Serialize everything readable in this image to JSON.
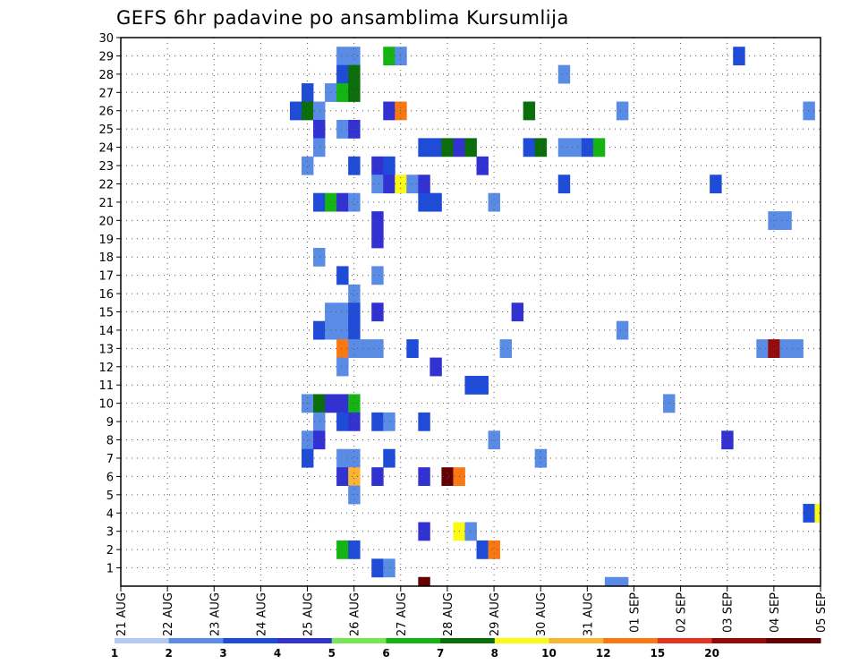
{
  "chart_data": {
    "type": "heatmap",
    "title": "GEFS 6hr padavine po ansamblima Kursumlija",
    "x_tick_labels": [
      "21 AUG",
      "22 AUG",
      "23 AUG",
      "24 AUG",
      "25 AUG",
      "26 AUG",
      "27 AUG",
      "28 AUG",
      "29 AUG",
      "30 AUG",
      "31 AUG",
      "01 SEP",
      "02 SEP",
      "03 SEP",
      "04 SEP",
      "05 SEP"
    ],
    "x_range_days": [
      0,
      15
    ],
    "y_ticks": [
      1,
      2,
      3,
      4,
      5,
      6,
      7,
      8,
      9,
      10,
      11,
      12,
      13,
      14,
      15,
      16,
      17,
      18,
      19,
      20,
      21,
      22,
      23,
      24,
      25,
      26,
      27,
      28,
      29,
      30
    ],
    "y_range": [
      0,
      30
    ],
    "grid": "dotted",
    "legend_placement": "bottom",
    "colorbar": {
      "thresholds": [
        "1",
        "2",
        "3",
        "4",
        "5",
        "6",
        "7",
        "8",
        "10",
        "12",
        "15",
        "20"
      ],
      "colors": [
        "#B4C8F5",
        "#5A8CE6",
        "#1E4BD7",
        "#3232D2",
        "#78E650",
        "#14B414",
        "#0A6E0A",
        "#FAFA14",
        "#FAB432",
        "#FA7814",
        "#E6321E",
        "#960A0A",
        "#640000"
      ]
    },
    "cells": [
      [
        4.75,
        29,
        1
      ],
      [
        5.0,
        29,
        1
      ],
      [
        5.75,
        29,
        5
      ],
      [
        6.0,
        29,
        1
      ],
      [
        13.25,
        29,
        2
      ],
      [
        4.75,
        28,
        2
      ],
      [
        5.0,
        28,
        6
      ],
      [
        9.5,
        28,
        1
      ],
      [
        4.0,
        27,
        2
      ],
      [
        4.5,
        27,
        1
      ],
      [
        4.75,
        27,
        5
      ],
      [
        5.0,
        27,
        6
      ],
      [
        3.75,
        26,
        2
      ],
      [
        4.0,
        26,
        6
      ],
      [
        4.25,
        26,
        1
      ],
      [
        5.75,
        26,
        3
      ],
      [
        6.0,
        26,
        9
      ],
      [
        8.75,
        26,
        6
      ],
      [
        10.75,
        26,
        1
      ],
      [
        14.75,
        26,
        1
      ],
      [
        4.25,
        25,
        3
      ],
      [
        4.75,
        25,
        1
      ],
      [
        5.0,
        25,
        3
      ],
      [
        4.25,
        24,
        1
      ],
      [
        6.5,
        24,
        2
      ],
      [
        6.75,
        24,
        2
      ],
      [
        7.0,
        24,
        6
      ],
      [
        7.25,
        24,
        3
      ],
      [
        7.5,
        24,
        6
      ],
      [
        8.75,
        24,
        2
      ],
      [
        9.0,
        24,
        6
      ],
      [
        9.5,
        24,
        1
      ],
      [
        9.75,
        24,
        1
      ],
      [
        10.0,
        24,
        2
      ],
      [
        10.25,
        24,
        5
      ],
      [
        4.0,
        23,
        1
      ],
      [
        5.0,
        23,
        2
      ],
      [
        5.5,
        23,
        3
      ],
      [
        5.75,
        23,
        2
      ],
      [
        7.75,
        23,
        3
      ],
      [
        5.5,
        22,
        1
      ],
      [
        5.75,
        22,
        3
      ],
      [
        6.0,
        22,
        7
      ],
      [
        6.25,
        22,
        1
      ],
      [
        6.5,
        22,
        3
      ],
      [
        9.5,
        22,
        2
      ],
      [
        12.75,
        22,
        2
      ],
      [
        4.25,
        21,
        2
      ],
      [
        4.5,
        21,
        5
      ],
      [
        4.75,
        21,
        3
      ],
      [
        5.0,
        21,
        1
      ],
      [
        6.5,
        21,
        2
      ],
      [
        6.75,
        21,
        2
      ],
      [
        8.0,
        21,
        1
      ],
      [
        5.5,
        20,
        3
      ],
      [
        14.0,
        20,
        1
      ],
      [
        14.25,
        20,
        1
      ],
      [
        5.5,
        19,
        3
      ],
      [
        4.25,
        18,
        1
      ],
      [
        4.75,
        17,
        2
      ],
      [
        5.5,
        17,
        1
      ],
      [
        5.0,
        16,
        1
      ],
      [
        4.5,
        15,
        1
      ],
      [
        4.75,
        15,
        1
      ],
      [
        5.0,
        15,
        2
      ],
      [
        5.5,
        15,
        3
      ],
      [
        8.5,
        15,
        3
      ],
      [
        4.25,
        14,
        2
      ],
      [
        4.5,
        14,
        1
      ],
      [
        4.75,
        14,
        1
      ],
      [
        5.0,
        14,
        2
      ],
      [
        10.75,
        14,
        1
      ],
      [
        4.75,
        13,
        9
      ],
      [
        5.0,
        13,
        1
      ],
      [
        5.25,
        13,
        1
      ],
      [
        5.5,
        13,
        1
      ],
      [
        6.25,
        13,
        2
      ],
      [
        8.25,
        13,
        1
      ],
      [
        13.75,
        13,
        1
      ],
      [
        14.0,
        13,
        11
      ],
      [
        14.25,
        13,
        1
      ],
      [
        14.5,
        13,
        1
      ],
      [
        4.75,
        12,
        1
      ],
      [
        6.75,
        12,
        3
      ],
      [
        7.5,
        11,
        2
      ],
      [
        7.75,
        11,
        2
      ],
      [
        4.0,
        10,
        1
      ],
      [
        4.25,
        10,
        6
      ],
      [
        4.5,
        10,
        3
      ],
      [
        4.75,
        10,
        3
      ],
      [
        5.0,
        10,
        5
      ],
      [
        11.75,
        10,
        1
      ],
      [
        4.25,
        9,
        1
      ],
      [
        4.75,
        9,
        2
      ],
      [
        5.0,
        9,
        3
      ],
      [
        5.5,
        9,
        2
      ],
      [
        5.75,
        9,
        1
      ],
      [
        6.5,
        9,
        2
      ],
      [
        4.0,
        8,
        1
      ],
      [
        4.25,
        8,
        3
      ],
      [
        8.0,
        8,
        1
      ],
      [
        13.0,
        8,
        3
      ],
      [
        4.0,
        7,
        2
      ],
      [
        4.75,
        7,
        1
      ],
      [
        5.0,
        7,
        1
      ],
      [
        5.75,
        7,
        2
      ],
      [
        9.0,
        7,
        1
      ],
      [
        4.75,
        6,
        3
      ],
      [
        5.0,
        6,
        8
      ],
      [
        5.5,
        6,
        3
      ],
      [
        6.5,
        6,
        3
      ],
      [
        7.0,
        6,
        12
      ],
      [
        7.25,
        6,
        9
      ],
      [
        5.0,
        5,
        1
      ],
      [
        14.75,
        4,
        2
      ],
      [
        15.0,
        4,
        7
      ],
      [
        6.5,
        3,
        3
      ],
      [
        7.25,
        3,
        7
      ],
      [
        7.5,
        3,
        1
      ],
      [
        4.75,
        2,
        5
      ],
      [
        5.0,
        2,
        2
      ],
      [
        7.75,
        2,
        2
      ],
      [
        8.0,
        2,
        9
      ],
      [
        5.5,
        1,
        2
      ],
      [
        5.75,
        1,
        1
      ],
      [
        6.5,
        0,
        12
      ],
      [
        10.5,
        0,
        1
      ],
      [
        10.75,
        0,
        1
      ]
    ]
  }
}
